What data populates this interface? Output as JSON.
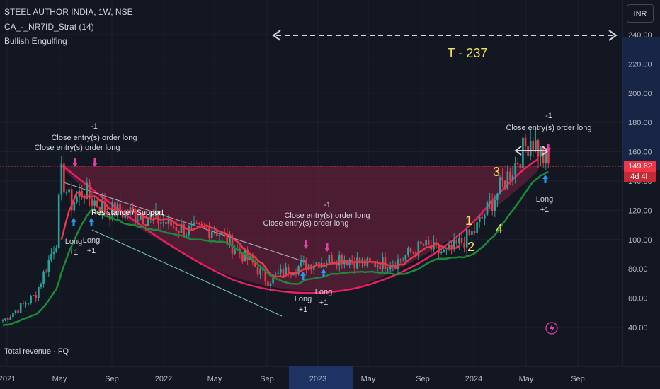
{
  "legend": {
    "symbol_line": "STEEL AUTHOR INDIA, 1W, NSE",
    "indicator_line": "CA_-_NR7ID_Strat (14)",
    "pattern_line": "Bullish Engulfing"
  },
  "currency_button": "INR",
  "price_tag": {
    "price": "149.62",
    "countdown": "4d 4h"
  },
  "bottom_pane_label": "Total revenue · FQ",
  "colors": {
    "up": "#26a69a",
    "down": "#f23645",
    "ma_red": "#e53950",
    "ma_green": "#1b8a3a",
    "cup": "#e91e63",
    "zone": "#7a2040",
    "trend": "#7fc8c0"
  },
  "annotations": {
    "target": "T - 237",
    "support": "Resistance / Support",
    "wave1": "1",
    "wave2": "2",
    "wave3": "3",
    "wave4": "4",
    "close_long": "Close entry(s) order long",
    "minus_one": "-1",
    "long": "Long",
    "plus_one": "+1"
  },
  "chart_data": {
    "type": "candlestick",
    "title": "STEEL AUTHOR INDIA, 1W, NSE",
    "y_ticks": [
      40,
      60,
      80,
      100,
      120,
      140,
      160,
      180,
      200,
      220,
      240
    ],
    "x_labels": [
      "2021",
      "May",
      "Sep",
      "2022",
      "May",
      "Sep",
      "2023",
      "May",
      "Sep",
      "2024",
      "May",
      "Sep"
    ],
    "last_price": 149.62,
    "close_path": [
      [
        "2021-01",
        45
      ],
      [
        "2021-03",
        62
      ],
      [
        "2021-05",
        100
      ],
      [
        "2021-05",
        145
      ],
      [
        "2021-06",
        124
      ],
      [
        "2021-07",
        134
      ],
      [
        "2021-08",
        128
      ],
      [
        "2021-09",
        120
      ],
      [
        "2021-11",
        118
      ],
      [
        "2022-01",
        112
      ],
      [
        "2022-03",
        105
      ],
      [
        "2022-05",
        108
      ],
      [
        "2022-06",
        95
      ],
      [
        "2022-08",
        82
      ],
      [
        "2022-09",
        72
      ],
      [
        "2022-11",
        80
      ],
      [
        "2023-01",
        85
      ],
      [
        "2023-03",
        88
      ],
      [
        "2023-05",
        83
      ],
      [
        "2023-07",
        85
      ],
      [
        "2023-09",
        96
      ],
      [
        "2023-11",
        90
      ],
      [
        "2024-01",
        105
      ],
      [
        "2024-03",
        130
      ],
      [
        "2024-05",
        158
      ],
      [
        "2024-06",
        170
      ],
      [
        "2024-07",
        149.62
      ]
    ],
    "resistance_level": 150
  }
}
